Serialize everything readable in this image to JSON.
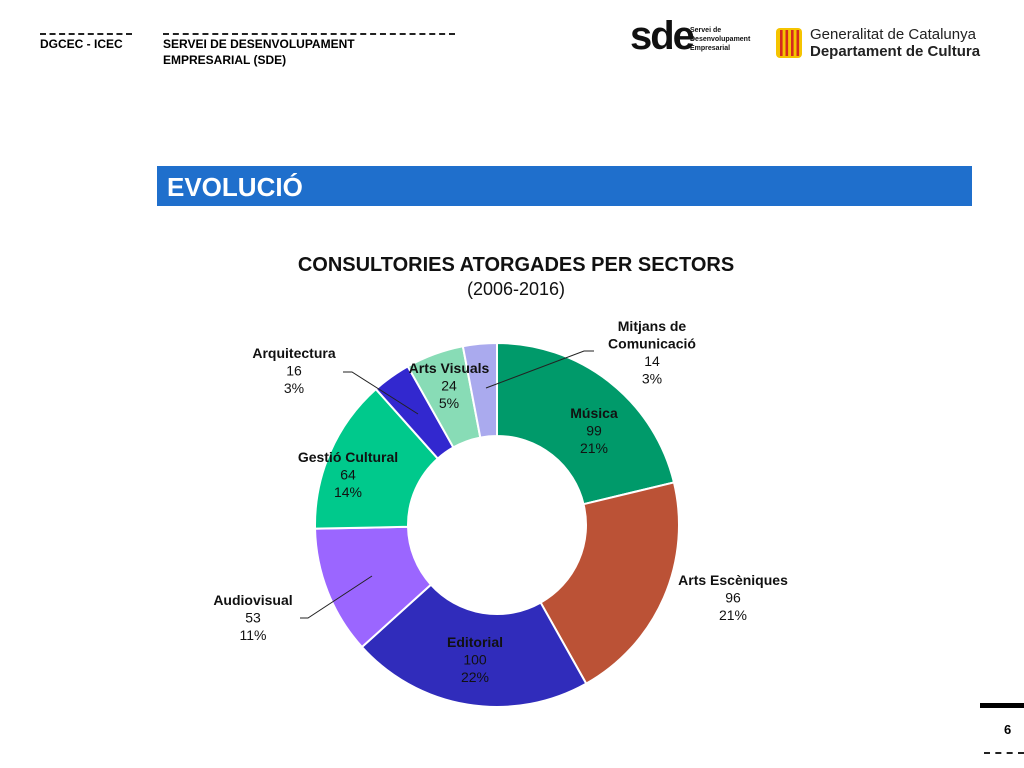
{
  "header": {
    "org_short": "DGCEC - ICEC",
    "service_line1": "SERVEI DE DESENVOLUPAMENT",
    "service_line2": "EMPRESARIAL (SDE)",
    "sde_logo": {
      "mark": "sde",
      "sub1": "Servei de",
      "sub2": "Desenvolupament",
      "sub3": "Empresarial"
    },
    "gen_logo": {
      "line1": "Generalitat de Catalunya",
      "line2": "Departament de Cultura"
    }
  },
  "section_title": "EVOLUCIÓ",
  "page_number": "6",
  "colors": {
    "banner": "#1f6fcc",
    "flag_yellow": "#f5c400",
    "flag_red": "#d52b1e"
  },
  "chart_data": {
    "type": "pie",
    "variant": "donut",
    "title": "CONSULTORIES ATORGADES PER SECTORS",
    "subtitle": "(2006-2016)",
    "legend": "none",
    "slices": [
      {
        "label": "Música",
        "value": 99,
        "percent": "21%",
        "color": "#009a6a"
      },
      {
        "label": "Arts Escèniques",
        "value": 96,
        "percent": "21%",
        "color": "#bb5236"
      },
      {
        "label": "Editorial",
        "value": 100,
        "percent": "22%",
        "color": "#302cbb"
      },
      {
        "label": "Audiovisual",
        "value": 53,
        "percent": "11%",
        "color": "#9b66ff"
      },
      {
        "label": "Gestió Cultural",
        "value": 64,
        "percent": "14%",
        "color": "#00c98c"
      },
      {
        "label": "Arquitectura",
        "value": 16,
        "percent": "3%",
        "color": "#3228cf"
      },
      {
        "label": "Arts Visuals",
        "value": 24,
        "percent": "5%",
        "color": "#88dcb6"
      },
      {
        "label": "Mitjans de Comunicació",
        "value": 14,
        "percent": "3%",
        "color": "#aaaaee"
      }
    ]
  }
}
